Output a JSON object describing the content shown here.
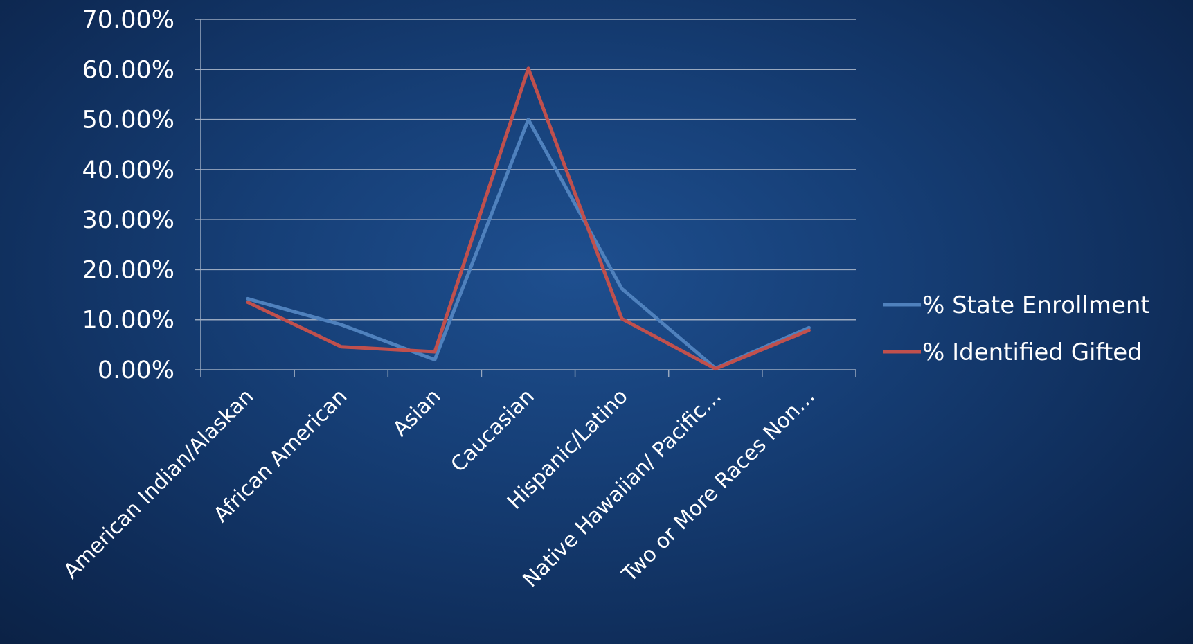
{
  "chart_data": {
    "type": "line",
    "title": "",
    "xlabel": "",
    "ylabel": "",
    "categories": [
      "American Indian/Alaskan",
      "African American",
      "Asian",
      "Caucasian",
      "Hispanic/Latino",
      "Native Hawaiian/ Pacific…",
      "Two or More Races Non…"
    ],
    "series": [
      {
        "name": "% State Enrollment",
        "color": "#4f81bd",
        "values": [
          14.2,
          9.0,
          2.0,
          50.0,
          16.2,
          0.3,
          8.4
        ]
      },
      {
        "name": "% Identified Gifted",
        "color": "#c0504d",
        "values": [
          13.5,
          4.6,
          3.6,
          60.2,
          10.2,
          0.2,
          7.9
        ]
      }
    ],
    "ylim": [
      0,
      70
    ],
    "yticks": [
      "0.00%",
      "10.00%",
      "20.00%",
      "30.00%",
      "40.00%",
      "50.00%",
      "60.00%",
      "70.00%"
    ],
    "grid": true,
    "legend": "right"
  }
}
